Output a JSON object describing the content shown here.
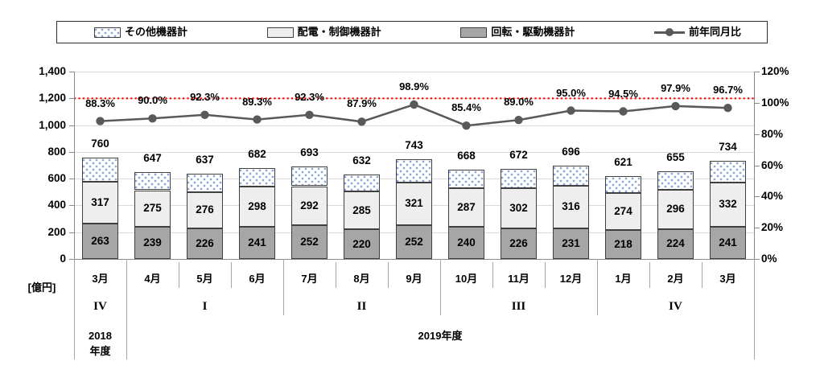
{
  "legend": {
    "items": [
      {
        "label": "その他機器計",
        "swatch": "dotted"
      },
      {
        "label": "配電・制御機器計",
        "swatch": "light"
      },
      {
        "label": "回転・駆動機器計",
        "swatch": "gray"
      },
      {
        "label": "前年同月比",
        "swatch": "line-marker"
      }
    ]
  },
  "chart_data": {
    "type": "bar",
    "subtype": "stacked-bars-with-line-overlay",
    "unit_label": "[億円]",
    "legend_position": "top",
    "grid": true,
    "categories": [
      "3月",
      "4月",
      "5月",
      "6月",
      "7月",
      "8月",
      "9月",
      "10月",
      "11月",
      "12月",
      "1月",
      "2月",
      "3月"
    ],
    "quarters": [
      {
        "label": "IV",
        "start": 0,
        "end": 0
      },
      {
        "label": "I",
        "start": 1,
        "end": 3
      },
      {
        "label": "II",
        "start": 4,
        "end": 6
      },
      {
        "label": "III",
        "start": 7,
        "end": 9
      },
      {
        "label": "IV",
        "start": 10,
        "end": 12
      }
    ],
    "years": [
      {
        "label_lines": [
          "2018",
          "年度"
        ],
        "start": 0,
        "end": 0
      },
      {
        "label_lines": [
          "2019年度"
        ],
        "start": 1,
        "end": 12
      }
    ],
    "totals": [
      760,
      647,
      637,
      682,
      693,
      632,
      743,
      668,
      672,
      696,
      621,
      655,
      734
    ],
    "series": [
      {
        "name": "回転・駆動機器計",
        "role": "stack-bottom",
        "fill": "gray",
        "values": [
          263,
          239,
          226,
          241,
          252,
          220,
          252,
          240,
          226,
          231,
          218,
          224,
          241
        ],
        "show_labels": true
      },
      {
        "name": "配電・制御機器計",
        "role": "stack-middle",
        "fill": "light",
        "values": [
          317,
          275,
          276,
          298,
          292,
          285,
          321,
          287,
          302,
          316,
          274,
          296,
          332
        ],
        "show_labels": true
      },
      {
        "name": "その他機器計",
        "role": "stack-top",
        "fill": "dotted",
        "values": [
          180,
          133,
          135,
          143,
          149,
          127,
          170,
          141,
          144,
          149,
          129,
          135,
          161
        ],
        "show_labels": false
      }
    ],
    "line_series": {
      "name": "前年同月比",
      "axis": "right",
      "values": [
        88.3,
        90.0,
        92.3,
        89.3,
        92.3,
        87.9,
        98.9,
        85.4,
        89.0,
        95.0,
        94.5,
        97.9,
        96.7
      ],
      "labels": [
        "88.3%",
        "90.0%",
        "92.3%",
        "89.3%",
        "92.3%",
        "87.9%",
        "98.9%",
        "85.4%",
        "89.0%",
        "95.0%",
        "94.5%",
        "97.9%",
        "96.7%"
      ]
    },
    "left_axis": {
      "min": 0,
      "max": 1400,
      "step": 200,
      "tick_labels": [
        "0",
        "200",
        "400",
        "600",
        "800",
        "1,000",
        "1,200",
        "1,400"
      ]
    },
    "right_axis": {
      "min": 0,
      "max": 120,
      "step": 20,
      "tick_labels": [
        "0%",
        "20%",
        "40%",
        "60%",
        "80%",
        "100%",
        "120%"
      ]
    },
    "reference_line": {
      "style": "dotted",
      "color": "#ff0000",
      "left_axis_value": 1200
    },
    "colors": {
      "bar_border": "#3f3f3f",
      "gray_fill": "#a6a6a6",
      "light_fill": "#eeeeee",
      "dot_color": "#8aa5d8",
      "line_color": "#595959",
      "gridline": "#d9d9d9",
      "axis_line": "#898989",
      "separator": "#a6a6a6",
      "reference": "#ff0000",
      "text": "#000000"
    }
  }
}
